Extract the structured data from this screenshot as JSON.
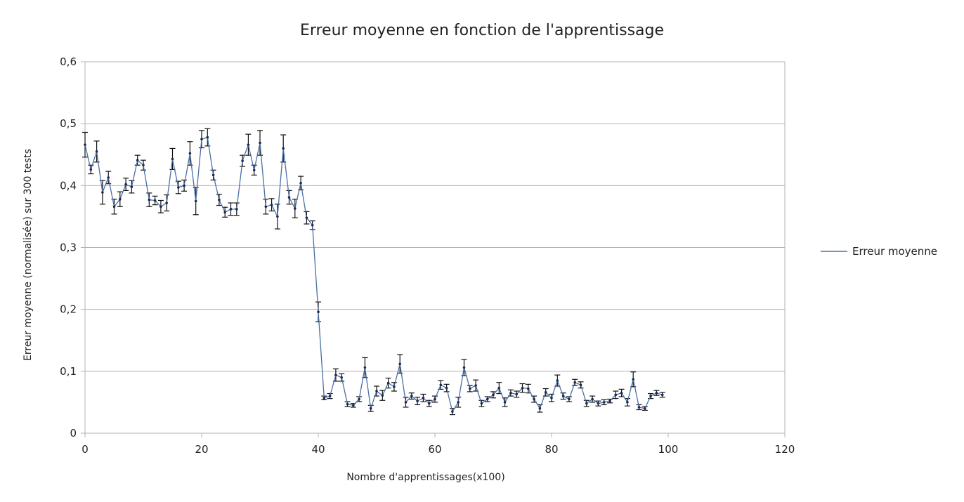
{
  "chart_data": {
    "type": "line",
    "title": "Erreur moyenne en fonction de l'apprentissage",
    "xlabel": "Nombre d'apprentissages(x100)",
    "ylabel": "Erreur moyenne (normalisée) sur 300 tests",
    "xlim": [
      0,
      120
    ],
    "ylim": [
      0,
      0.6
    ],
    "x_ticks": [
      0,
      20,
      40,
      60,
      80,
      100,
      120
    ],
    "x_tick_labels": [
      "0",
      "20",
      "40",
      "60",
      "80",
      "100",
      "120"
    ],
    "y_ticks": [
      0,
      0.1,
      0.2,
      0.3,
      0.4,
      0.5,
      0.6
    ],
    "y_tick_labels": [
      "0",
      "0,1",
      "0,2",
      "0,3",
      "0,4",
      "0,5",
      "0,6"
    ],
    "grid": "horizontal",
    "legend_position": "right",
    "colors": {
      "series": "#4a6fa5",
      "marker": "#1a2a55",
      "errorbar": "#111111",
      "grid": "#b3b3b3",
      "axis": "#b3b3b3"
    },
    "series": [
      {
        "name": "Erreur moyenne",
        "x": [
          0,
          1,
          2,
          3,
          4,
          5,
          6,
          7,
          8,
          9,
          10,
          11,
          12,
          13,
          14,
          15,
          16,
          17,
          18,
          19,
          20,
          21,
          22,
          23,
          24,
          25,
          26,
          27,
          28,
          29,
          30,
          31,
          32,
          33,
          34,
          35,
          36,
          37,
          38,
          39,
          40,
          41,
          42,
          43,
          44,
          45,
          46,
          47,
          48,
          49,
          50,
          51,
          52,
          53,
          54,
          55,
          56,
          57,
          58,
          59,
          60,
          61,
          62,
          63,
          64,
          65,
          66,
          67,
          68,
          69,
          70,
          71,
          72,
          73,
          74,
          75,
          76,
          77,
          78,
          79,
          80,
          81,
          82,
          83,
          84,
          85,
          86,
          87,
          88,
          89,
          90,
          91,
          92,
          93,
          94,
          95,
          96,
          97,
          98,
          99
        ],
        "values": [
          0.466,
          0.426,
          0.455,
          0.389,
          0.413,
          0.366,
          0.378,
          0.402,
          0.398,
          0.441,
          0.433,
          0.377,
          0.376,
          0.366,
          0.372,
          0.443,
          0.397,
          0.4,
          0.452,
          0.375,
          0.475,
          0.478,
          0.417,
          0.377,
          0.357,
          0.362,
          0.362,
          0.44,
          0.466,
          0.425,
          0.469,
          0.366,
          0.369,
          0.35,
          0.46,
          0.381,
          0.363,
          0.404,
          0.348,
          0.336,
          0.196,
          0.057,
          0.06,
          0.094,
          0.09,
          0.047,
          0.045,
          0.055,
          0.106,
          0.04,
          0.068,
          0.061,
          0.081,
          0.075,
          0.112,
          0.05,
          0.06,
          0.052,
          0.057,
          0.048,
          0.055,
          0.078,
          0.073,
          0.035,
          0.05,
          0.106,
          0.072,
          0.077,
          0.048,
          0.055,
          0.062,
          0.073,
          0.05,
          0.065,
          0.063,
          0.073,
          0.072,
          0.055,
          0.04,
          0.066,
          0.057,
          0.085,
          0.06,
          0.055,
          0.082,
          0.078,
          0.048,
          0.055,
          0.048,
          0.05,
          0.052,
          0.062,
          0.065,
          0.05,
          0.087,
          0.042,
          0.04,
          0.06,
          0.065,
          0.062
        ],
        "error": [
          0.02,
          0.007,
          0.017,
          0.019,
          0.01,
          0.012,
          0.012,
          0.01,
          0.01,
          0.008,
          0.008,
          0.011,
          0.007,
          0.01,
          0.013,
          0.017,
          0.01,
          0.009,
          0.019,
          0.022,
          0.014,
          0.014,
          0.008,
          0.009,
          0.008,
          0.01,
          0.01,
          0.009,
          0.017,
          0.008,
          0.02,
          0.012,
          0.01,
          0.02,
          0.022,
          0.011,
          0.015,
          0.011,
          0.01,
          0.007,
          0.016,
          0.003,
          0.004,
          0.01,
          0.006,
          0.004,
          0.003,
          0.004,
          0.016,
          0.005,
          0.008,
          0.008,
          0.008,
          0.007,
          0.015,
          0.008,
          0.005,
          0.006,
          0.006,
          0.005,
          0.005,
          0.007,
          0.006,
          0.005,
          0.008,
          0.013,
          0.005,
          0.009,
          0.005,
          0.004,
          0.005,
          0.009,
          0.007,
          0.005,
          0.005,
          0.007,
          0.007,
          0.005,
          0.006,
          0.006,
          0.006,
          0.009,
          0.005,
          0.004,
          0.005,
          0.005,
          0.005,
          0.005,
          0.004,
          0.004,
          0.003,
          0.006,
          0.006,
          0.006,
          0.012,
          0.004,
          0.003,
          0.004,
          0.004,
          0.004
        ]
      }
    ]
  }
}
